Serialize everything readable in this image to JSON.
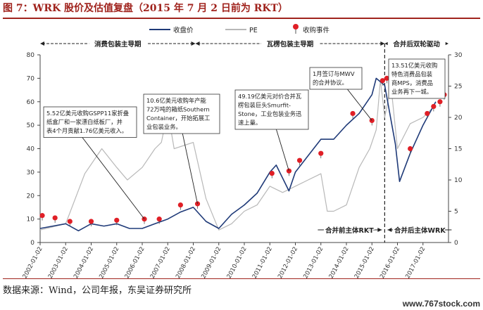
{
  "figure_title": "图 7：WRK 股价及估值复盘（2015 年 7 月 2 日前为 RKT）",
  "source_text": "数据来源：Wind，公司年报，东吴证券研究所",
  "watermark": "www.767stock.com",
  "colors": {
    "accent": "#a0231d",
    "price": "#1f3a78",
    "pe": "#b8b8b8",
    "event": "#e01f26"
  },
  "chart_data": {
    "type": "line",
    "title": "",
    "xlabel": "",
    "ylabel": "",
    "ylabel_right": "",
    "ylim": [
      0,
      80
    ],
    "ylim_right": [
      0,
      30
    ],
    "yticks": [
      "0",
      "10",
      "20",
      "30",
      "40",
      "50",
      "60",
      "70",
      "80"
    ],
    "yticks_right": [
      "0",
      "5",
      "10",
      "15",
      "20",
      "25",
      "30"
    ],
    "xticks": [
      "2002-01-02",
      "2003-01-02",
      "2004-01-02",
      "2005-01-02",
      "2006-01-02",
      "2007-01-02",
      "2008-01-02",
      "2009-01-02",
      "2010-01-02",
      "2011-01-02",
      "2012-01-02",
      "2013-01-02",
      "2014-01-02",
      "2015-01-02",
      "2016-01-02",
      "2017-01-02"
    ],
    "legend": [
      "收盘价",
      "PE",
      "收购事件"
    ],
    "legend_position": "top-center",
    "grid": false,
    "series": [
      {
        "name": "收盘价",
        "axis": "left",
        "points": [
          [
            "2002-01",
            6
          ],
          [
            "2002-07",
            7
          ],
          [
            "2003-01",
            8
          ],
          [
            "2003-07",
            5
          ],
          [
            "2004-01",
            8
          ],
          [
            "2004-07",
            7
          ],
          [
            "2005-01",
            8
          ],
          [
            "2005-07",
            6
          ],
          [
            "2006-01",
            6
          ],
          [
            "2006-07",
            8
          ],
          [
            "2007-01",
            10
          ],
          [
            "2007-07",
            13
          ],
          [
            "2008-01",
            15
          ],
          [
            "2008-07",
            9
          ],
          [
            "2009-01",
            6
          ],
          [
            "2009-07",
            12
          ],
          [
            "2010-01",
            16
          ],
          [
            "2010-07",
            21
          ],
          [
            "2011-01",
            30
          ],
          [
            "2011-04",
            33
          ],
          [
            "2011-10",
            22
          ],
          [
            "2012-01",
            30
          ],
          [
            "2012-07",
            37
          ],
          [
            "2013-01",
            44
          ],
          [
            "2013-07",
            44
          ],
          [
            "2014-01",
            50
          ],
          [
            "2014-07",
            55
          ],
          [
            "2015-01",
            63
          ],
          [
            "2015-03",
            70
          ],
          [
            "2015-07",
            67
          ],
          [
            "2015-12",
            42
          ],
          [
            "2016-02",
            26
          ],
          [
            "2016-07",
            38
          ],
          [
            "2017-01",
            50
          ],
          [
            "2017-07",
            60
          ]
        ]
      },
      {
        "name": "PE",
        "axis": "right",
        "points": [
          [
            "2002-01",
            2
          ],
          [
            "2003-01",
            3
          ],
          [
            "2003-10",
            11
          ],
          [
            "2004-06",
            15
          ],
          [
            "2005-01",
            12
          ],
          [
            "2005-06",
            10
          ],
          [
            "2006-01",
            12
          ],
          [
            "2006-07",
            15
          ],
          [
            "2006-10",
            16
          ],
          [
            "2007-01",
            21
          ],
          [
            "2007-04",
            15
          ],
          [
            "2008-01",
            16
          ],
          [
            "2008-07",
            7
          ],
          [
            "2009-01",
            2
          ],
          [
            "2009-07",
            3
          ],
          [
            "2010-01",
            5
          ],
          [
            "2010-07",
            6
          ],
          [
            "2011-01",
            9
          ],
          [
            "2011-07",
            8
          ],
          [
            "2012-01",
            9
          ],
          [
            "2012-07",
            10
          ],
          [
            "2013-01",
            11
          ],
          [
            "2013-04",
            5
          ],
          [
            "2013-07",
            5
          ],
          [
            "2014-01",
            6
          ],
          [
            "2014-07",
            12
          ],
          [
            "2014-12",
            15
          ],
          [
            "2015-03",
            18
          ],
          [
            "2015-05",
            26
          ],
          [
            "2015-07",
            20
          ],
          [
            "2015-10",
            25
          ],
          [
            "2016-01",
            15
          ],
          [
            "2016-07",
            19
          ],
          [
            "2017-01",
            20
          ],
          [
            "2017-07",
            22
          ]
        ]
      }
    ],
    "events": [
      [
        "2002-02",
        11.5
      ],
      [
        "2002-08",
        10.5
      ],
      [
        "2003-03",
        9
      ],
      [
        "2004-01",
        9
      ],
      [
        "2005-01",
        9.5
      ],
      [
        "2006-02",
        10
      ],
      [
        "2006-09",
        10
      ],
      [
        "2007-07",
        16
      ],
      [
        "2008-03",
        16.5
      ],
      [
        "2011-02",
        29.5
      ],
      [
        "2011-10",
        30.5
      ],
      [
        "2012-03",
        35
      ],
      [
        "2013-01",
        38
      ],
      [
        "2014-04",
        55
      ],
      [
        "2015-01",
        52
      ],
      [
        "2015-06",
        69
      ],
      [
        "2015-08",
        70
      ],
      [
        "2016-07",
        40
      ],
      [
        "2017-03",
        55
      ],
      [
        "2017-06",
        58
      ],
      [
        "2017-09",
        60
      ],
      [
        "2017-11",
        63
      ]
    ],
    "phases": [
      {
        "label": "消费包装主导期",
        "start": "2002-01",
        "end": "2008-02"
      },
      {
        "label": "瓦楞包装主导期",
        "start": "2008-02",
        "end": "2015-07"
      },
      {
        "label": "合并后双轮驱动",
        "start": "2015-07",
        "end": "2017-12"
      }
    ],
    "divider_date": "2015-07",
    "lower_labels": [
      {
        "label": "合并前主体RKT",
        "side": "left"
      },
      {
        "label": "合并后主体WRK",
        "side": "right"
      }
    ],
    "annotations": [
      {
        "text": [
          "5.52亿美元收购GSPP11家折叠",
          "纸盒厂和一家漂白纸板厂，并",
          "表4个月贡献1.76亿美元收入。"
        ],
        "target": [
          "2006-02",
          10
        ]
      },
      {
        "text": [
          "10.6亿美元收购年产能",
          "72万吨的箱纸Southern",
          "Container，开始拓展工",
          "业包装业务。"
        ],
        "target": [
          "2008-03",
          16.5
        ]
      },
      {
        "text": [
          "49.19亿美元对价合并瓦",
          "楞包装巨头Smurfit-",
          "Stone，工业包装业务迅",
          "速上量。"
        ],
        "target": [
          "2011-10",
          30.5
        ]
      },
      {
        "text": [
          "1月签订与MWV",
          "的合并协议。"
        ],
        "target": [
          "2015-01",
          52
        ]
      },
      {
        "text": [
          "13.51亿美元收购",
          "特色消费品包装",
          "商MPS，消费品",
          "业务再下一城。"
        ],
        "target": [
          "2017-11",
          63
        ]
      }
    ]
  }
}
